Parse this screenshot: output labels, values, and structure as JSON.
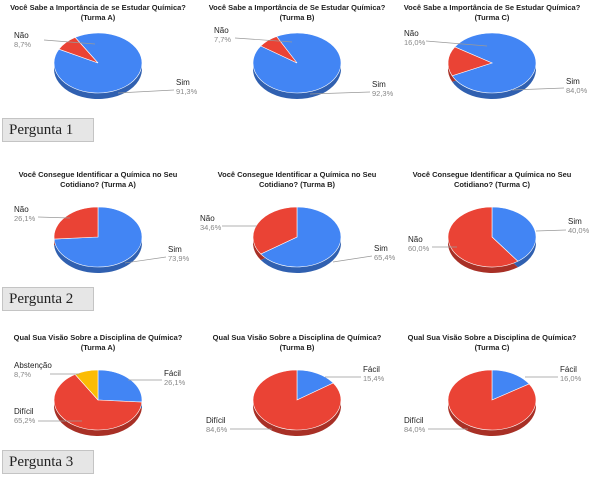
{
  "colors": {
    "sim": "#4285f4",
    "nao": "#ea4335",
    "abstencao": "#fbbc04",
    "facil": "#4285f4",
    "dificil": "#ea4335"
  },
  "section_labels": [
    "Pergunta 1",
    "Pergunta 2",
    "Pergunta 3"
  ],
  "chart_data": [
    {
      "type": "pie",
      "title": "Você Sabe a Importância de se Estudar Química? (Turma A)",
      "slices": [
        {
          "label": "Sim",
          "value": 91.3,
          "text": "91,3%"
        },
        {
          "label": "Não",
          "value": 8.7,
          "text": "8,7%"
        }
      ]
    },
    {
      "type": "pie",
      "title": "Você Sabe a Importância de Se Estudar Química? (Turma B)",
      "slices": [
        {
          "label": "Sim",
          "value": 92.3,
          "text": "92,3%"
        },
        {
          "label": "Não",
          "value": 7.7,
          "text": "7,7%"
        }
      ]
    },
    {
      "type": "pie",
      "title": "Você Sabe a Importância de Se Estudar Química? (Turma C)",
      "slices": [
        {
          "label": "Sim",
          "value": 84.0,
          "text": "84,0%"
        },
        {
          "label": "Não",
          "value": 16.0,
          "text": "16,0%"
        }
      ]
    },
    {
      "type": "pie",
      "title": "Você Consegue Identificar a Química no Seu Cotidiano? (Turma A)",
      "slices": [
        {
          "label": "Sim",
          "value": 73.9,
          "text": "73,9%"
        },
        {
          "label": "Não",
          "value": 26.1,
          "text": "26,1%"
        }
      ]
    },
    {
      "type": "pie",
      "title": "Você Consegue Identificar a Química no Seu Cotidiano? (Turma B)",
      "slices": [
        {
          "label": "Sim",
          "value": 65.4,
          "text": "65,4%"
        },
        {
          "label": "Não",
          "value": 34.6,
          "text": "34,6%"
        }
      ]
    },
    {
      "type": "pie",
      "title": "Você Consegue Identificar a Química no Seu Cotidiano? (Turma C)",
      "slices": [
        {
          "label": "Sim",
          "value": 40.0,
          "text": "40,0%"
        },
        {
          "label": "Não",
          "value": 60.0,
          "text": "60,0%"
        }
      ]
    },
    {
      "type": "pie",
      "title": "Qual Sua Visão Sobre a Disciplina de Química? (Turma A)",
      "slices": [
        {
          "label": "Fácil",
          "value": 26.1,
          "text": "26,1%"
        },
        {
          "label": "Difícil",
          "value": 65.2,
          "text": "65,2%"
        },
        {
          "label": "Abstenção",
          "value": 8.7,
          "text": "8,7%"
        }
      ]
    },
    {
      "type": "pie",
      "title": "Qual Sua Visão Sobre a Disciplina de Química? (Turma B)",
      "slices": [
        {
          "label": "Fácil",
          "value": 15.4,
          "text": "15,4%"
        },
        {
          "label": "Difícil",
          "value": 84.6,
          "text": "84,6%"
        }
      ]
    },
    {
      "type": "pie",
      "title": "Qual Sua Visão Sobre a Disciplina de Química? (Turma C)",
      "slices": [
        {
          "label": "Fácil",
          "value": 16.0,
          "text": "16,0%"
        },
        {
          "label": "Difícil",
          "value": 84.0,
          "text": "84,0%"
        }
      ]
    }
  ]
}
